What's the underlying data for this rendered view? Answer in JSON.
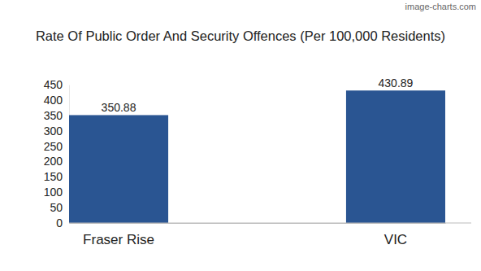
{
  "chart_data": {
    "type": "bar",
    "title": "Rate Of Public Order And Security Offences (Per 100,000 Residents)",
    "annotations": [
      "image-charts.com"
    ],
    "categories": [
      "Fraser Rise",
      "VIC"
    ],
    "values": [
      350.88,
      430.89
    ],
    "color": "#2a5592",
    "ylim": [
      0,
      450
    ],
    "yticks": [
      0,
      50,
      100,
      150,
      200,
      250,
      300,
      350,
      400,
      450
    ],
    "grid": false,
    "data_labels": true
  }
}
